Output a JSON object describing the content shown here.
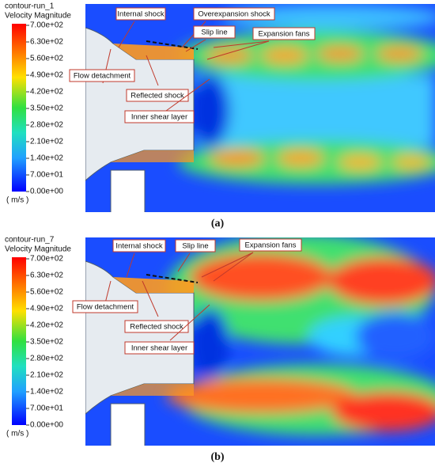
{
  "panels": [
    {
      "title": "contour-run_1",
      "quantity": "Velocity Magnitude",
      "colorbar_ticks": [
        "7.00e+02",
        "6.30e+02",
        "5.60e+02",
        "4.90e+02",
        "4.20e+02",
        "3.50e+02",
        "2.80e+02",
        "2.10e+02",
        "1.40e+02",
        "7.00e+01",
        "0.00e+00"
      ],
      "unit": "( m/s )",
      "annotations": [
        "Internal shock",
        "Overexpansion shock",
        "Slip line",
        "Expansion fans",
        "Flow detachment",
        "Reflected  shock",
        "Inner shear layer"
      ],
      "caption": "(a)"
    },
    {
      "title": "contour-run_7",
      "quantity": "Velocity Magnitude",
      "colorbar_ticks": [
        "7.00e+02",
        "6.30e+02",
        "5.60e+02",
        "4.90e+02",
        "4.20e+02",
        "3.50e+02",
        "2.80e+02",
        "2.10e+02",
        "1.40e+02",
        "7.00e+01",
        "0.00e+00"
      ],
      "unit": "( m/s )",
      "annotations": [
        "Internal shock",
        "Slip line",
        "Expansion fans",
        "Flow detachment",
        "Reflected  shock",
        "Inner shear layer"
      ],
      "caption": "(b)"
    }
  ]
}
